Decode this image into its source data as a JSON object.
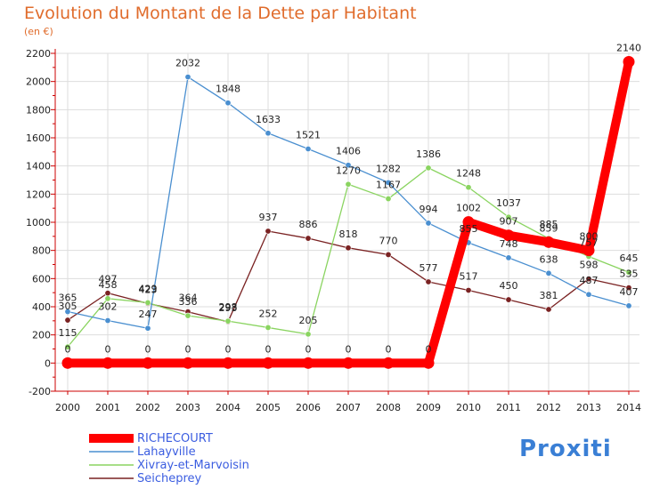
{
  "header": {
    "title": "Evolution du Montant de la Dette par Habitant",
    "subtitle": "(en €)"
  },
  "brand": {
    "text": "Proxiti"
  },
  "colors": {
    "RICHECOURT": "#ff0000",
    "Lahayville": "#4a8fd0",
    "Xivray-et-Marvoisin": "#8ad460",
    "Seicheprey": "#7a2222",
    "axis": "#cc0000",
    "grid": "#dddddd"
  },
  "chart_data": {
    "type": "line",
    "title": "Evolution du Montant de la Dette par Habitant",
    "subtitle": "(en €)",
    "x": [
      "2000",
      "2001",
      "2002",
      "2003",
      "2004",
      "2005",
      "2006",
      "2007",
      "2008",
      "2009",
      "2010",
      "2011",
      "2012",
      "2013",
      "2014"
    ],
    "ylim": [
      -200,
      2200
    ],
    "yticks": [
      "-200",
      "0",
      "200",
      "400",
      "600",
      "800",
      "1000",
      "1200",
      "1400",
      "1600",
      "1800",
      "2000",
      "2200"
    ],
    "grid": true,
    "legend_position": "bottom-left",
    "series": [
      {
        "name": "RICHECOURT",
        "values": [
          0,
          0,
          0,
          0,
          0,
          0,
          0,
          0,
          0,
          0,
          1002,
          907,
          859,
          800,
          2140
        ],
        "labels": [
          "0",
          "0",
          "0",
          "0",
          "0",
          "0",
          "0",
          "0",
          "0",
          "0",
          "1002",
          "907",
          "859",
          "800",
          "2140"
        ]
      },
      {
        "name": "Lahayville",
        "values": [
          365,
          302,
          247,
          2032,
          1848,
          1633,
          1521,
          1406,
          1282,
          994,
          855,
          748,
          638,
          487,
          407
        ],
        "labels": [
          "365",
          "302",
          "247",
          "2032",
          "1848",
          "1633",
          "1521",
          "1406",
          "1282",
          "994",
          "855",
          "748",
          "638",
          "487",
          "407"
        ]
      },
      {
        "name": "Xivray-et-Marvoisin",
        "values": [
          115,
          458,
          429,
          336,
          298,
          252,
          205,
          1270,
          1167,
          1386,
          1248,
          1037,
          885,
          757,
          645
        ],
        "labels": [
          "115",
          "458",
          "429",
          "336",
          "298",
          "252",
          "205",
          "1270",
          "1167",
          "1386",
          "1248",
          "1037",
          "885",
          "757",
          "645"
        ]
      },
      {
        "name": "Seicheprey",
        "values": [
          305,
          497,
          423,
          364,
          293,
          937,
          886,
          818,
          770,
          577,
          517,
          450,
          381,
          598,
          535
        ],
        "labels": [
          "305",
          "497",
          "423",
          "364",
          "293",
          "937",
          "886",
          "818",
          "770",
          "577",
          "517",
          "450",
          "381",
          "598",
          "535"
        ]
      }
    ]
  }
}
